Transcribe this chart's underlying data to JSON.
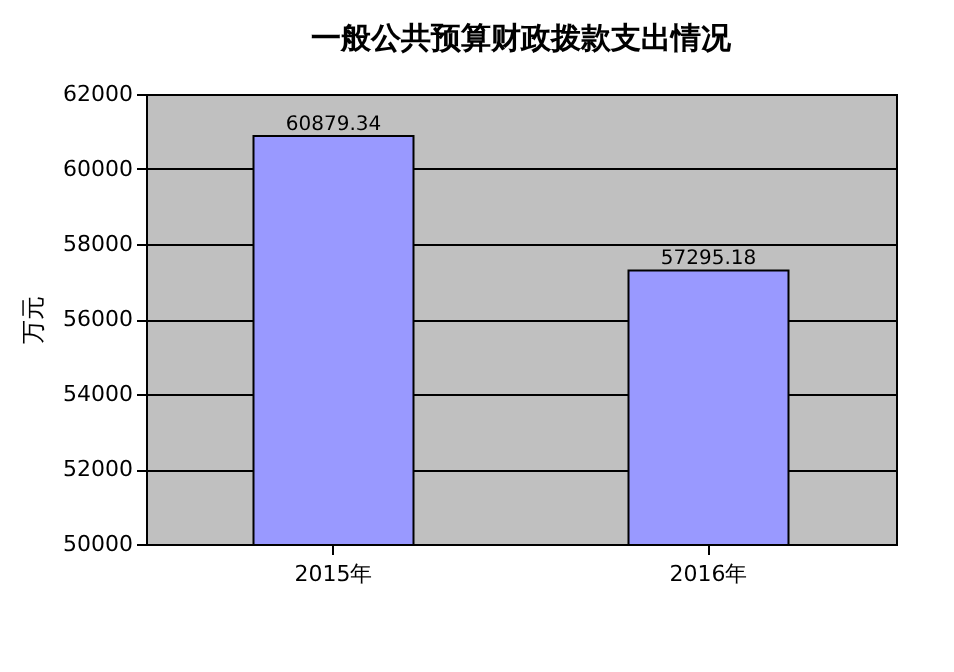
{
  "chart_data": {
    "type": "bar",
    "title": "一般公共预算财政拨款支出情况",
    "ylabel": "万元",
    "categories": [
      "2015年",
      "2016年"
    ],
    "series": [
      {
        "color": "#9999ff",
        "values": [
          60879.34,
          57295.18
        ]
      }
    ],
    "value_labels": [
      "60879.34",
      "57295.18"
    ],
    "ylim": [
      50000,
      62000
    ],
    "yticks": [
      50000,
      52000,
      54000,
      56000,
      58000,
      60000,
      62000
    ],
    "grid": "y"
  }
}
